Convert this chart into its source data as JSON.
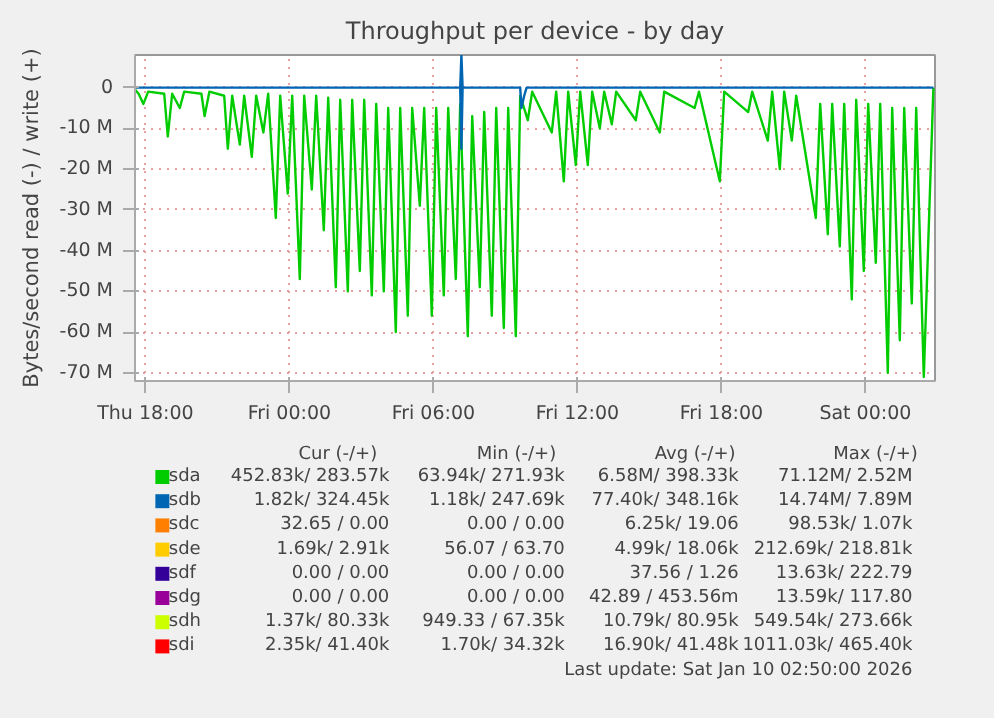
{
  "chart_data": {
    "type": "line",
    "title": "Throughput per device - by day",
    "ylabel": "Bytes/second read (-) / write (+)",
    "xlim": [
      "2026-01-08T17:34",
      "2026-01-10T02:54"
    ],
    "ylim": [
      -72,
      8
    ],
    "xticks": [
      {
        "value": "2026-01-08T18:00",
        "label": "Thu 18:00"
      },
      {
        "value": "2026-01-09T00:00",
        "label": "Fri 00:00"
      },
      {
        "value": "2026-01-09T06:00",
        "label": "Fri 06:00"
      },
      {
        "value": "2026-01-09T12:00",
        "label": "Fri 12:00"
      },
      {
        "value": "2026-01-09T18:00",
        "label": "Fri 18:00"
      },
      {
        "value": "2026-01-10T00:00",
        "label": "Sat 00:00"
      }
    ],
    "yticks": [
      0,
      {
        "value": -10,
        "label": "-10 M"
      },
      {
        "value": -20,
        "label": "-20 M"
      },
      {
        "value": -30,
        "label": "-30 M"
      },
      {
        "value": -40,
        "label": "-40 M"
      },
      {
        "value": -50,
        "label": "-50 M"
      },
      {
        "value": -60,
        "label": "-60 M"
      },
      {
        "value": -70,
        "label": "-70 M"
      }
    ],
    "grid": true,
    "legend": "bottom",
    "series": [
      {
        "name": "sda",
        "color": "#00cc00",
        "x": [
          "2026-01-08T17:34",
          "2026-01-08T17:43",
          "2026-01-08T17:55",
          "2026-01-08T18:07",
          "2026-01-08T18:47",
          "2026-01-08T18:56",
          "2026-01-08T19:07",
          "2026-01-08T19:26",
          "2026-01-08T19:37",
          "2026-01-08T20:20",
          "2026-01-08T20:28",
          "2026-01-08T20:40",
          "2026-01-08T21:17",
          "2026-01-08T21:26",
          "2026-01-08T21:37",
          "2026-01-08T21:56",
          "2026-01-08T22:07",
          "2026-01-08T22:26",
          "2026-01-08T22:37",
          "2026-01-08T22:55",
          "2026-01-08T23:07",
          "2026-01-08T23:26",
          "2026-01-08T23:37",
          "2026-01-08T23:56",
          "2026-01-09T00:07",
          "2026-01-09T00:26",
          "2026-01-09T00:37",
          "2026-01-09T00:56",
          "2026-01-09T01:07",
          "2026-01-09T01:26",
          "2026-01-09T01:37",
          "2026-01-09T01:56",
          "2026-01-09T02:07",
          "2026-01-09T02:26",
          "2026-01-09T02:37",
          "2026-01-09T02:56",
          "2026-01-09T03:07",
          "2026-01-09T03:26",
          "2026-01-09T03:37",
          "2026-01-09T03:56",
          "2026-01-09T04:07",
          "2026-01-09T04:26",
          "2026-01-09T04:37",
          "2026-01-09T04:56",
          "2026-01-09T05:07",
          "2026-01-09T05:26",
          "2026-01-09T05:37",
          "2026-01-09T05:56",
          "2026-01-09T06:07",
          "2026-01-09T06:26",
          "2026-01-09T06:37",
          "2026-01-09T06:56",
          "2026-01-09T07:07",
          "2026-01-09T07:26",
          "2026-01-09T07:37",
          "2026-01-09T07:56",
          "2026-01-09T08:07",
          "2026-01-09T08:26",
          "2026-01-09T08:37",
          "2026-01-09T08:56",
          "2026-01-09T09:07",
          "2026-01-09T09:26",
          "2026-01-09T09:37",
          "2026-01-09T09:56",
          "2026-01-09T10:07",
          "2026-01-09T10:56",
          "2026-01-09T11:07",
          "2026-01-09T11:26",
          "2026-01-09T11:37",
          "2026-01-09T11:56",
          "2026-01-09T12:07",
          "2026-01-09T12:26",
          "2026-01-09T12:37",
          "2026-01-09T12:56",
          "2026-01-09T13:07",
          "2026-01-09T13:26",
          "2026-01-09T13:37",
          "2026-01-09T14:26",
          "2026-01-09T14:37",
          "2026-01-09T15:26",
          "2026-01-09T15:37",
          "2026-01-09T16:53",
          "2026-01-09T17:04",
          "2026-01-09T17:56",
          "2026-01-09T18:07",
          "2026-01-09T19:07",
          "2026-01-09T19:17",
          "2026-01-09T19:56",
          "2026-01-09T20:07",
          "2026-01-09T20:26",
          "2026-01-09T20:37",
          "2026-01-09T20:56",
          "2026-01-09T21:07",
          "2026-01-09T21:56",
          "2026-01-09T22:07",
          "2026-01-09T22:26",
          "2026-01-09T22:37",
          "2026-01-09T22:56",
          "2026-01-09T23:07",
          "2026-01-09T23:26",
          "2026-01-09T23:37",
          "2026-01-09T23:56",
          "2026-01-10T00:07",
          "2026-01-10T00:26",
          "2026-01-10T00:37",
          "2026-01-10T00:56",
          "2026-01-10T01:07",
          "2026-01-10T01:26",
          "2026-01-10T01:37",
          "2026-01-10T01:56",
          "2026-01-10T02:07",
          "2026-01-10T02:26",
          "2026-01-10T02:50"
        ],
        "values": [
          -0.5,
          -1.5,
          -4,
          -1,
          -1.5,
          -12,
          -1.5,
          -5,
          -1,
          -1.5,
          -7,
          -1,
          -2,
          -15,
          -2,
          -14,
          -2,
          -17,
          -2,
          -11,
          -1.5,
          -32,
          -2,
          -26,
          -2,
          -47,
          -2,
          -25,
          -2,
          -35,
          -2.5,
          -49,
          -3,
          -50,
          -3,
          -45,
          -3,
          -51,
          -4,
          -50,
          -5,
          -60,
          -5,
          -56,
          -5,
          -29,
          -5,
          -56,
          -5,
          -51,
          -5,
          -47,
          -4,
          -61,
          -7,
          -49,
          -6,
          -56,
          -5,
          -59,
          -5,
          -61,
          -2,
          -8,
          -1,
          -11,
          -1,
          -23,
          -1,
          -19,
          -1,
          -19,
          -1,
          -10,
          -1,
          -9,
          -1,
          -8,
          -1,
          -11,
          -1,
          -5,
          -1,
          -23,
          -1,
          -6,
          -1,
          -13,
          -1,
          -20,
          -1,
          -13,
          -2,
          -32,
          -4,
          -36,
          -4,
          -39,
          -4,
          -52,
          -3,
          -45,
          -4,
          -43,
          -4,
          -70,
          -5,
          -62,
          -5,
          -53,
          -5,
          -71,
          0
        ]
      },
      {
        "name": "sdb",
        "color": "#0066b3",
        "x": [
          "2026-01-08T17:34",
          "2026-01-09T07:07",
          "2026-01-09T07:10",
          "2026-01-09T07:13",
          "2026-01-09T09:37",
          "2026-01-09T09:40",
          "2026-01-09T09:47",
          "2026-01-09T09:53",
          "2026-01-10T02:50"
        ],
        "values": [
          0,
          0,
          -15,
          0,
          0,
          -5,
          -2,
          0,
          0
        ]
      },
      {
        "color": "#0066b3",
        "x": [
          "2026-01-09T07:07",
          "2026-01-09T07:10",
          "2026-01-09T07:13"
        ],
        "values": [
          0,
          8,
          0
        ]
      },
      {
        "name": "sdc",
        "color": "#ff8000"
      },
      {
        "name": "sde",
        "color": "#ffcc00"
      },
      {
        "name": "sdf",
        "color": "#330099"
      },
      {
        "name": "sdg",
        "color": "#990099"
      },
      {
        "name": "sdh",
        "color": "#ccff00"
      },
      {
        "name": "sdi",
        "color": "#ff0000"
      }
    ],
    "annotations": [
      "Cur (-/+)",
      "Min (-/+)",
      "Avg (-/+)",
      "Max (-/+)",
      "452.83k/ 283.57k",
      "63.94k/ 271.93k",
      "6.58M/ 398.33k",
      "71.12M/ 2.52M",
      "1.82k/ 324.45k",
      "1.18k/ 247.69k",
      "77.40k/ 348.16k",
      "14.74M/ 7.89M",
      "32.65 / 0.00",
      "0.00 / 0.00",
      "6.25k/ 19.06",
      "98.53k/ 1.07k",
      "1.69k/ 2.91k",
      "56.07 / 63.70",
      "4.99k/ 18.06k",
      "212.69k/ 218.81k",
      "0.00 / 0.00",
      "0.00 / 0.00",
      "37.56 / 1.26",
      "13.63k/ 222.79",
      "0.00 / 0.00",
      "0.00 / 0.00",
      "42.89 / 453.56m",
      "13.59k/ 117.80",
      "1.37k/ 80.33k",
      "949.33 / 67.35k",
      "10.79k/ 80.95k",
      "549.54k/ 273.66k",
      "2.35k/ 41.40k",
      "1.70k/ 34.32k",
      "16.90k/ 41.48k",
      "1011.03k/ 465.40k",
      "Last update: Sat Jan 10 02:50:00 2026"
    ]
  }
}
